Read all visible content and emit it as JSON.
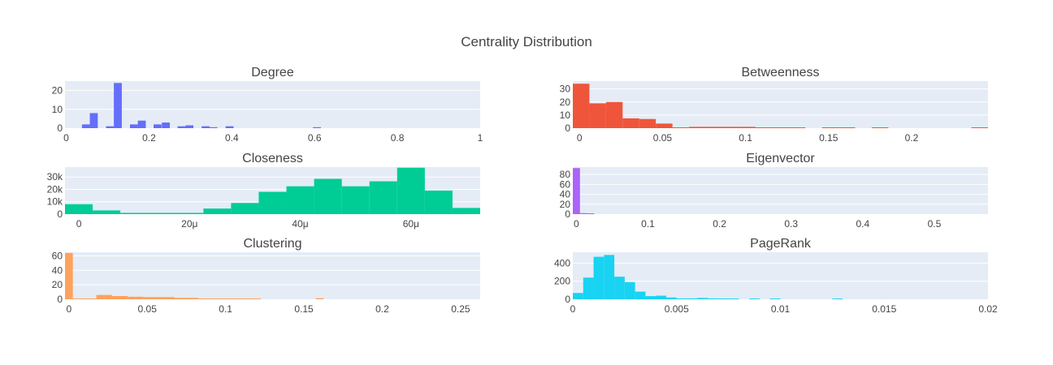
{
  "figure": {
    "title": "Centrality Distribution"
  },
  "colors": {
    "plot_bg": "#e5ecf6",
    "grid": "#ffffff",
    "text": "#444444"
  },
  "chart_data": [
    {
      "type": "bar",
      "title": "Degree",
      "color": "#636efa",
      "xlim": [
        -0.003,
        1.0
      ],
      "ylim": [
        0,
        25
      ],
      "xticks": [
        0,
        0.2,
        0.4,
        0.6,
        0.8,
        1
      ],
      "xtick_labels": [
        "0",
        "0.2",
        "0.4",
        "0.6",
        "0.8",
        "1"
      ],
      "yticks": [
        0,
        10,
        20
      ],
      "ytick_labels": [
        "0",
        "10",
        "20"
      ],
      "bin_width": 0.0192,
      "bins": [
        [
          0.038,
          2
        ],
        [
          0.057,
          8
        ],
        [
          0.096,
          1
        ],
        [
          0.115,
          24
        ],
        [
          0.154,
          2
        ],
        [
          0.173,
          4
        ],
        [
          0.211,
          2
        ],
        [
          0.231,
          3
        ],
        [
          0.269,
          1
        ],
        [
          0.288,
          1.5
        ],
        [
          0.327,
          1
        ],
        [
          0.346,
          0.5
        ],
        [
          0.385,
          1
        ],
        [
          0.596,
          0.5
        ]
      ]
    },
    {
      "type": "bar",
      "title": "Betweenness",
      "color": "#ef553b",
      "xlim": [
        -0.004,
        0.246
      ],
      "ylim": [
        0,
        36
      ],
      "xticks": [
        0,
        0.05,
        0.1,
        0.15,
        0.2
      ],
      "xtick_labels": [
        "0",
        "0.05",
        "0.1",
        "0.15",
        "0.2"
      ],
      "yticks": [
        0,
        10,
        20,
        30
      ],
      "ytick_labels": [
        "0",
        "10",
        "20",
        "30"
      ],
      "bin_width": 0.01,
      "bins": [
        [
          -0.004,
          34
        ],
        [
          0.006,
          19
        ],
        [
          0.016,
          20
        ],
        [
          0.026,
          7.5
        ],
        [
          0.036,
          7
        ],
        [
          0.046,
          3.5
        ],
        [
          0.056,
          0.5
        ],
        [
          0.066,
          1
        ],
        [
          0.076,
          1
        ],
        [
          0.086,
          1
        ],
        [
          0.096,
          1
        ],
        [
          0.106,
          0.5
        ],
        [
          0.116,
          0.5
        ],
        [
          0.126,
          0.5
        ],
        [
          0.146,
          0.5
        ],
        [
          0.156,
          0.5
        ],
        [
          0.176,
          0.5
        ],
        [
          0.236,
          0.5
        ]
      ]
    },
    {
      "type": "bar",
      "title": "Closeness",
      "color": "#00cc96",
      "xlim": [
        -2.5e-06,
        7.25e-05
      ],
      "ylim": [
        0,
        38000
      ],
      "xticks": [
        0,
        2e-05,
        4e-05,
        6e-05
      ],
      "xtick_labels": [
        "0",
        "20μ",
        "40μ",
        "60μ"
      ],
      "yticks": [
        0,
        10000,
        20000,
        30000
      ],
      "ytick_labels": [
        "0",
        "10k",
        "20k",
        "30k"
      ],
      "bin_width": 5e-06,
      "bins": [
        [
          -2.5e-06,
          8000
        ],
        [
          2.5e-06,
          3000
        ],
        [
          7.5e-06,
          1000
        ],
        [
          1.25e-05,
          1000
        ],
        [
          1.75e-05,
          1000
        ],
        [
          2.25e-05,
          4500
        ],
        [
          2.75e-05,
          9000
        ],
        [
          3.25e-05,
          18000
        ],
        [
          3.75e-05,
          22500
        ],
        [
          4.25e-05,
          28500
        ],
        [
          4.75e-05,
          22500
        ],
        [
          5.25e-05,
          26500
        ],
        [
          5.75e-05,
          37500
        ],
        [
          6.25e-05,
          19000
        ],
        [
          6.75e-05,
          5000
        ]
      ]
    },
    {
      "type": "bar",
      "title": "Eigenvector",
      "color": "#ab63fa",
      "xlim": [
        -0.005,
        0.575
      ],
      "ylim": [
        0,
        95
      ],
      "xticks": [
        0,
        0.1,
        0.2,
        0.3,
        0.4,
        0.5
      ],
      "xtick_labels": [
        "0",
        "0.1",
        "0.2",
        "0.3",
        "0.4",
        "0.5"
      ],
      "yticks": [
        0,
        20,
        40,
        60,
        80
      ],
      "ytick_labels": [
        "0",
        "20",
        "40",
        "60",
        "80"
      ],
      "bin_width": 0.01,
      "bins": [
        [
          -0.005,
          93
        ],
        [
          0.005,
          2
        ],
        [
          0.015,
          1
        ]
      ]
    },
    {
      "type": "bar",
      "title": "Clustering",
      "color": "#ffa15a",
      "xlim": [
        -0.0025,
        0.2625
      ],
      "ylim": [
        0,
        65
      ],
      "xticks": [
        0,
        0.05,
        0.1,
        0.15,
        0.2,
        0.25
      ],
      "xtick_labels": [
        "0",
        "0.05",
        "0.1",
        "0.15",
        "0.2",
        "0.25"
      ],
      "yticks": [
        0,
        20,
        40,
        60
      ],
      "ytick_labels": [
        "0",
        "20",
        "40",
        "60"
      ],
      "bin_width": 0.005,
      "bins": [
        [
          -0.0025,
          64
        ],
        [
          0.0025,
          1
        ],
        [
          0.0075,
          1
        ],
        [
          0.0125,
          1
        ],
        [
          0.0175,
          6
        ],
        [
          0.0225,
          6
        ],
        [
          0.0275,
          4.5
        ],
        [
          0.0325,
          4.5
        ],
        [
          0.0375,
          3.5
        ],
        [
          0.0425,
          3.5
        ],
        [
          0.0475,
          3
        ],
        [
          0.0525,
          3
        ],
        [
          0.0575,
          3
        ],
        [
          0.0625,
          3
        ],
        [
          0.0675,
          2
        ],
        [
          0.0725,
          2
        ],
        [
          0.0775,
          2
        ],
        [
          0.0825,
          1
        ],
        [
          0.0875,
          1
        ],
        [
          0.0925,
          1
        ],
        [
          0.0975,
          1
        ],
        [
          0.1025,
          1
        ],
        [
          0.1075,
          1
        ],
        [
          0.1125,
          1
        ],
        [
          0.1175,
          1
        ],
        [
          0.1575,
          1.5
        ]
      ]
    },
    {
      "type": "bar",
      "title": "PageRank",
      "color": "#19d3f3",
      "xlim": [
        0,
        0.02
      ],
      "ylim": [
        0,
        520
      ],
      "xticks": [
        0,
        0.005,
        0.01,
        0.015,
        0.02
      ],
      "xtick_labels": [
        "0",
        "0.005",
        "0.01",
        "0.015",
        "0.02"
      ],
      "yticks": [
        0,
        200,
        400
      ],
      "ytick_labels": [
        "0",
        "200",
        "400"
      ],
      "bin_width": 0.0005,
      "bins": [
        [
          0.0,
          70
        ],
        [
          0.0005,
          240
        ],
        [
          0.001,
          470
        ],
        [
          0.0015,
          490
        ],
        [
          0.002,
          250
        ],
        [
          0.0025,
          190
        ],
        [
          0.003,
          85
        ],
        [
          0.0035,
          35
        ],
        [
          0.004,
          40
        ],
        [
          0.0045,
          20
        ],
        [
          0.005,
          10
        ],
        [
          0.0055,
          10
        ],
        [
          0.006,
          15
        ],
        [
          0.0065,
          10
        ],
        [
          0.007,
          5
        ],
        [
          0.0075,
          3
        ],
        [
          0.0085,
          3
        ],
        [
          0.0095,
          2
        ],
        [
          0.0125,
          3
        ]
      ]
    }
  ]
}
